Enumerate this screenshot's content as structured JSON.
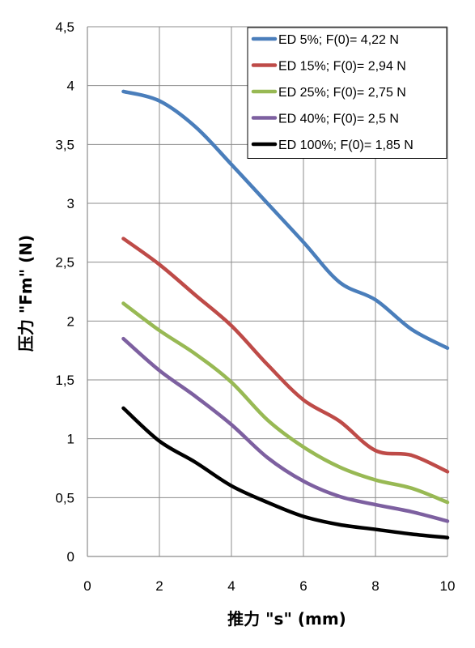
{
  "chart_data": {
    "type": "line",
    "title": "",
    "xlabel": "推力  \"s\" (mm)",
    "ylabel": "压力 \"Fm\" (N)",
    "xlim": [
      0,
      10
    ],
    "ylim": [
      0,
      4.5
    ],
    "x_ticks": [
      "0",
      "2",
      "4",
      "6",
      "8",
      "10"
    ],
    "y_ticks": [
      "0",
      "0,5",
      "1",
      "1,5",
      "2",
      "2,5",
      "3",
      "3,5",
      "4",
      "4,5"
    ],
    "grid": true,
    "legend_position": "top-right",
    "series": [
      {
        "name": "ED 5%; F(0)= 4,22 N",
        "color": "#4a7ebb",
        "x": [
          1,
          2,
          3,
          4,
          5,
          6,
          7,
          8,
          9,
          10
        ],
        "y": [
          3.95,
          3.87,
          3.65,
          3.33,
          3.0,
          2.67,
          2.33,
          2.18,
          1.93,
          1.77
        ]
      },
      {
        "name": "ED 15%; F(0)= 2,94 N",
        "color": "#be4b48",
        "x": [
          1,
          2,
          3,
          4,
          5,
          6,
          7,
          8,
          9,
          10
        ],
        "y": [
          2.7,
          2.48,
          2.22,
          1.96,
          1.63,
          1.33,
          1.15,
          0.9,
          0.86,
          0.72
        ]
      },
      {
        "name": "ED 25%; F(0)= 2,75 N",
        "color": "#98b954",
        "x": [
          1,
          2,
          3,
          4,
          5,
          6,
          7,
          8,
          9,
          10
        ],
        "y": [
          2.15,
          1.92,
          1.72,
          1.48,
          1.16,
          0.93,
          0.76,
          0.65,
          0.58,
          0.46
        ]
      },
      {
        "name": "ED 40%; F(0)= 2,5 N",
        "color": "#7d60a0",
        "x": [
          1,
          2,
          3,
          4,
          5,
          6,
          7,
          8,
          9,
          10
        ],
        "y": [
          1.85,
          1.58,
          1.36,
          1.12,
          0.84,
          0.64,
          0.51,
          0.44,
          0.38,
          0.3
        ]
      },
      {
        "name": "ED 100%; F(0)= 1,85 N",
        "color": "#000000",
        "x": [
          1,
          2,
          3,
          4,
          5,
          6,
          7,
          8,
          9,
          10
        ],
        "y": [
          1.26,
          0.98,
          0.8,
          0.6,
          0.46,
          0.34,
          0.27,
          0.23,
          0.19,
          0.16
        ]
      }
    ]
  }
}
